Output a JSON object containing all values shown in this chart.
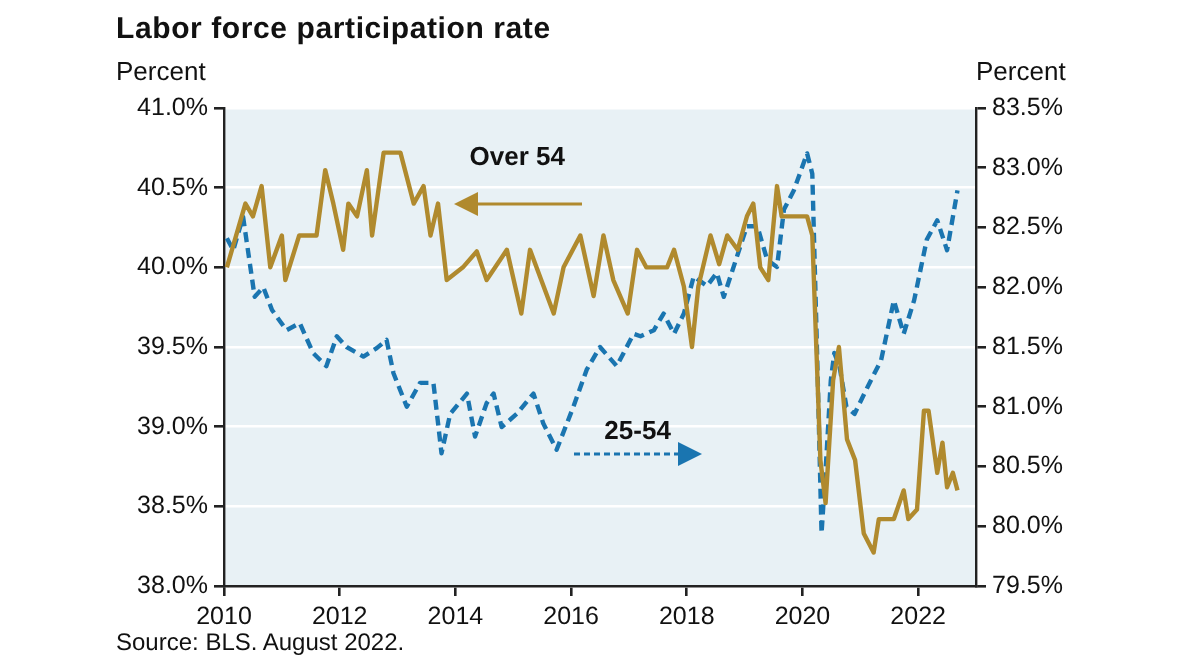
{
  "chart_data": {
    "type": "line",
    "title": "Labor force participation rate",
    "ylabel": "Percent",
    "y2label": "Percent",
    "xlim": [
      2010,
      2023
    ],
    "xticks": [
      2010,
      2012,
      2014,
      2016,
      2018,
      2020,
      2022
    ],
    "ylim": [
      38,
      41
    ],
    "yticks": [
      {
        "value": 38,
        "label": "38.0%"
      },
      {
        "value": 38.5,
        "label": "38.5%"
      },
      {
        "value": 39,
        "label": "39.0%"
      },
      {
        "value": 39.5,
        "label": "39.5%"
      },
      {
        "value": 40,
        "label": "40.0%"
      },
      {
        "value": 40.5,
        "label": "40.5%"
      },
      {
        "value": 41,
        "label": "41.0%"
      }
    ],
    "y2lim": [
      79.5,
      83.5
    ],
    "y2ticks": [
      {
        "value": 79.5,
        "label": "79.5%"
      },
      {
        "value": 80,
        "label": "80.0%"
      },
      {
        "value": 80.5,
        "label": "80.5%"
      },
      {
        "value": 81,
        "label": "81.0%"
      },
      {
        "value": 81.5,
        "label": "81.5%"
      },
      {
        "value": 82,
        "label": "82.0%"
      },
      {
        "value": 82.5,
        "label": "82.5%"
      },
      {
        "value": 83,
        "label": "83.0%"
      },
      {
        "value": 83.5,
        "label": "83.5%"
      }
    ],
    "grid": "y",
    "legend": false,
    "marker": "none",
    "series": [
      {
        "name": "Over 54",
        "color": "#b08a2e",
        "line_style": "solid",
        "x": [
          2010.05,
          2010.37,
          2010.5,
          2010.65,
          2010.8,
          2011.0,
          2011.06,
          2011.3,
          2011.6,
          2011.75,
          2011.89,
          2012.06,
          2012.15,
          2012.3,
          2012.47,
          2012.56,
          2012.76,
          2013.05,
          2013.28,
          2013.45,
          2013.57,
          2013.7,
          2013.85,
          2014.13,
          2014.37,
          2014.54,
          2014.89,
          2015.14,
          2015.29,
          2015.7,
          2015.87,
          2016.16,
          2016.39,
          2016.56,
          2016.73,
          2016.98,
          2017.14,
          2017.3,
          2017.66,
          2017.78,
          2017.95,
          2018.09,
          2018.2,
          2018.41,
          2018.56,
          2018.7,
          2018.88,
          2019.04,
          2019.15,
          2019.27,
          2019.41,
          2019.56,
          2019.64,
          2020.08,
          2020.17,
          2020.31,
          2020.4,
          2020.53,
          2020.63,
          2020.77,
          2020.91,
          2021.06,
          2021.23,
          2021.32,
          2021.58,
          2021.75,
          2021.83,
          2021.98,
          2022.1,
          2022.18,
          2022.33,
          2022.42,
          2022.5,
          2022.6,
          2022.68
        ],
        "values": [
          40.0,
          40.4,
          40.32,
          40.51,
          40.0,
          40.2,
          39.92,
          40.2,
          40.2,
          40.61,
          40.4,
          40.11,
          40.4,
          40.32,
          40.61,
          40.2,
          40.72,
          40.72,
          40.4,
          40.51,
          40.2,
          40.4,
          39.92,
          40.0,
          40.1,
          39.92,
          40.11,
          39.71,
          40.11,
          39.71,
          40.0,
          40.2,
          39.82,
          40.2,
          39.92,
          39.71,
          40.11,
          40.0,
          40.0,
          40.11,
          39.88,
          39.5,
          39.88,
          40.2,
          40.02,
          40.2,
          40.11,
          40.32,
          40.4,
          40.0,
          39.92,
          40.51,
          40.32,
          40.32,
          40.2,
          38.79,
          38.52,
          39.29,
          39.5,
          38.92,
          38.79,
          38.33,
          38.21,
          38.42,
          38.42,
          38.6,
          38.42,
          38.48,
          39.1,
          39.1,
          38.71,
          38.9,
          38.62,
          38.71,
          38.6
        ]
      },
      {
        "name": "25-54",
        "color": "#1a75b0",
        "axis": "y2",
        "line_style": "dashed",
        "x": [
          2010.05,
          2010.16,
          2010.33,
          2010.53,
          2010.68,
          2010.83,
          2011.08,
          2011.31,
          2011.54,
          2011.77,
          2011.95,
          2012.12,
          2012.41,
          2012.64,
          2012.81,
          2012.93,
          2013.16,
          2013.39,
          2013.62,
          2013.76,
          2013.91,
          2014.2,
          2014.34,
          2014.54,
          2014.66,
          2014.8,
          2015.06,
          2015.35,
          2015.52,
          2015.75,
          2016.04,
          2016.27,
          2016.5,
          2016.79,
          2017.08,
          2017.2,
          2017.43,
          2017.6,
          2017.78,
          2017.95,
          2018.12,
          2018.35,
          2018.52,
          2018.64,
          2018.87,
          2019.04,
          2019.22,
          2019.39,
          2019.56,
          2019.68,
          2019.85,
          2020.08,
          2020.17,
          2020.25,
          2020.33,
          2020.41,
          2020.49,
          2020.55,
          2020.64,
          2020.76,
          2020.9,
          2021.13,
          2021.36,
          2021.58,
          2021.75,
          2021.93,
          2022.15,
          2022.33,
          2022.5,
          2022.68
        ],
        "values": [
          82.41,
          82.31,
          82.59,
          81.92,
          82.0,
          81.81,
          81.64,
          81.7,
          81.45,
          81.34,
          81.59,
          81.5,
          81.42,
          81.49,
          81.56,
          81.28,
          81.0,
          81.2,
          81.2,
          80.61,
          80.94,
          81.11,
          80.75,
          81.03,
          81.11,
          80.83,
          80.94,
          81.11,
          80.86,
          80.64,
          81.0,
          81.31,
          81.5,
          81.34,
          81.61,
          81.59,
          81.64,
          81.78,
          81.61,
          81.78,
          82.09,
          82.01,
          82.12,
          81.92,
          82.26,
          82.51,
          82.51,
          82.23,
          82.17,
          82.65,
          82.81,
          83.12,
          82.95,
          81.5,
          79.94,
          80.55,
          81.22,
          81.45,
          81.34,
          81.0,
          80.94,
          81.17,
          81.39,
          81.89,
          81.61,
          81.89,
          82.4,
          82.56,
          82.31,
          82.81
        ]
      }
    ],
    "annotations": [
      "Source: BLS. August 2022."
    ]
  }
}
